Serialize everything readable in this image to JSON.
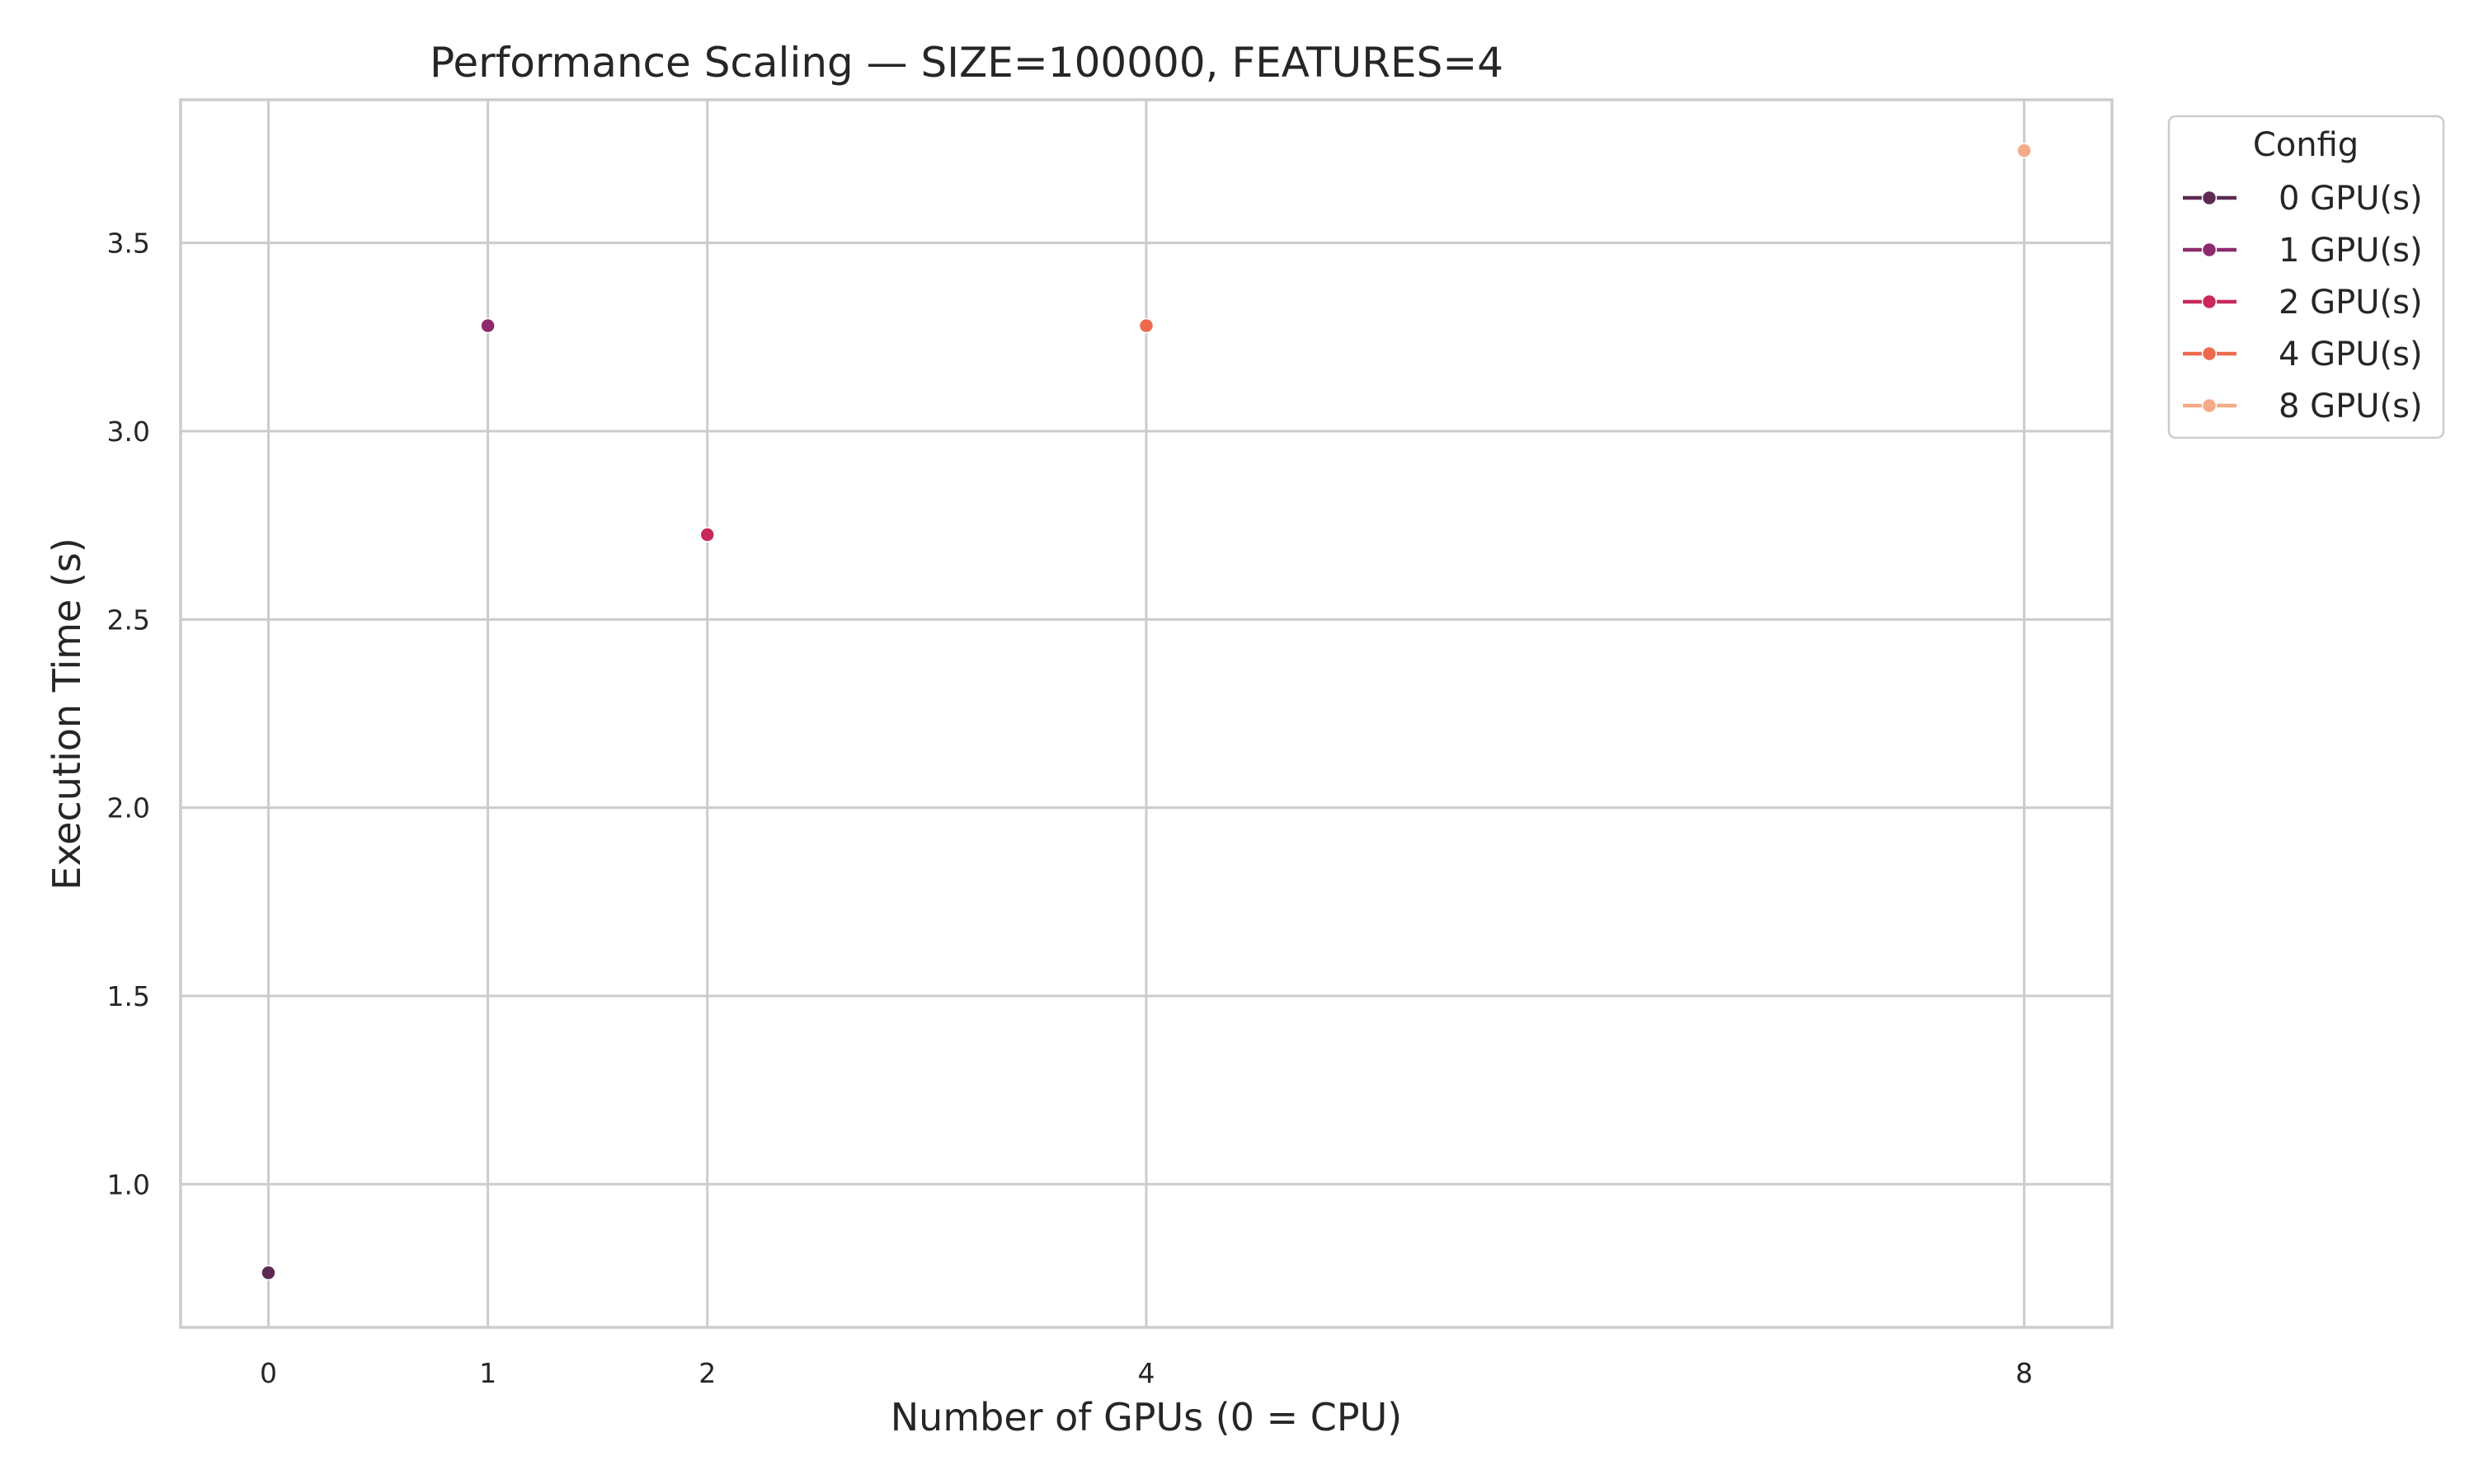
{
  "chart_data": {
    "type": "scatter",
    "title": "Performance Scaling — SIZE=100000, FEATURES=4",
    "xlabel": "Number of GPUs (0 = CPU)",
    "ylabel": "Execution Time (s)",
    "xlim": [
      -0.4,
      8.4
    ],
    "ylim": [
      0.62,
      3.88
    ],
    "x_ticks": [
      0,
      1,
      2,
      4,
      8
    ],
    "y_ticks": [
      1.0,
      1.5,
      2.0,
      2.5,
      3.0,
      3.5
    ],
    "x_tick_labels": [
      "0",
      "1",
      "2",
      "4",
      "8"
    ],
    "y_tick_labels": [
      "1.0",
      "1.5",
      "2.0",
      "2.5",
      "3.0",
      "3.5"
    ],
    "grid": true,
    "legend": {
      "title": "Config",
      "placement": "outside-top-right"
    },
    "series": [
      {
        "name": "0 GPU(s)",
        "color": "#5c2a52",
        "x": [
          0
        ],
        "y": [
          0.765
        ]
      },
      {
        "name": "1 GPU(s)",
        "color": "#8e2a6b",
        "x": [
          1
        ],
        "y": [
          3.28
        ]
      },
      {
        "name": "2 GPU(s)",
        "color": "#c8285a",
        "x": [
          2
        ],
        "y": [
          2.725
        ]
      },
      {
        "name": "4 GPU(s)",
        "color": "#ef6a4d",
        "x": [
          4
        ],
        "y": [
          3.28
        ]
      },
      {
        "name": "8 GPU(s)",
        "color": "#f5ab87",
        "x": [
          8
        ],
        "y": [
          3.745
        ]
      }
    ]
  }
}
